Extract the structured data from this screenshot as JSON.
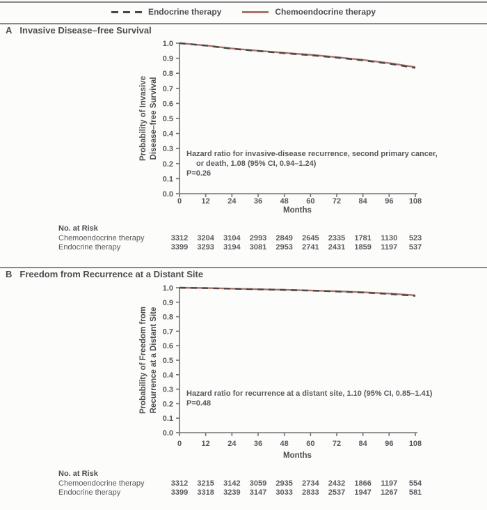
{
  "legend": {
    "items": [
      {
        "label": "Endocrine therapy",
        "line_style": "dashed",
        "color": "#48484a"
      },
      {
        "label": "Chemoendocrine therapy",
        "line_style": "solid",
        "color": "#ab7468"
      }
    ]
  },
  "panels": [
    {
      "letter": "A",
      "title": "Invasive Disease–free Survival",
      "ylabel_line1": "Probability of Invasive",
      "ylabel_line2": "Disease–free Survival",
      "xlabel": "Months",
      "annotation_lines": [
        "Hazard ratio for invasive-disease recurrence, second primary cancer,",
        "or death, 1.08 (95% CI, 0.94–1.24)",
        "P=0.26"
      ],
      "risk_table": {
        "header": "No. at Risk",
        "rows": [
          {
            "label": "Chemoendocrine therapy",
            "values": [
              3312,
              3204,
              3104,
              2993,
              2849,
              2645,
              2335,
              1781,
              1130,
              523
            ]
          },
          {
            "label": "Endocrine therapy",
            "values": [
              3399,
              3293,
              3194,
              3081,
              2953,
              2741,
              2431,
              1859,
              1197,
              537
            ]
          }
        ]
      }
    },
    {
      "letter": "B",
      "title": "Freedom from Recurrence at a Distant Site",
      "ylabel_line1": "Probability of Freedom from",
      "ylabel_line2": "Recurrence at a Distant Site",
      "xlabel": "Months",
      "annotation_lines": [
        "Hazard ratio for recurrence at a distant site, 1.10 (95% CI, 0.85–1.41)",
        "P=0.48"
      ],
      "risk_table": {
        "header": "No. at Risk",
        "rows": [
          {
            "label": "Chemoendocrine therapy",
            "values": [
              3312,
              3215,
              3142,
              3059,
              2935,
              2734,
              2432,
              1866,
              1197,
              554
            ]
          },
          {
            "label": "Endocrine therapy",
            "values": [
              3399,
              3318,
              3239,
              3147,
              3033,
              2833,
              2537,
              1947,
              1267,
              581
            ]
          }
        ]
      }
    }
  ],
  "chart_data": [
    {
      "type": "line",
      "title": "Invasive Disease–free Survival",
      "xlabel": "Months",
      "ylabel": "Probability of Invasive Disease–free Survival",
      "x": [
        0,
        12,
        24,
        36,
        48,
        60,
        72,
        84,
        96,
        108
      ],
      "xlim": [
        0,
        108
      ],
      "ylim": [
        0.0,
        1.0
      ],
      "yticks": [
        0.0,
        0.1,
        0.2,
        0.3,
        0.4,
        0.5,
        0.6,
        0.7,
        0.8,
        0.9,
        1.0
      ],
      "grid": false,
      "legend_position": "top-center",
      "series": [
        {
          "name": "Endocrine therapy",
          "style": "dashed",
          "color": "#48484a",
          "values": [
            1.0,
            0.984,
            0.963,
            0.948,
            0.933,
            0.92,
            0.904,
            0.886,
            0.864,
            0.836
          ]
        },
        {
          "name": "Chemoendocrine therapy",
          "style": "solid",
          "color": "#ab7468",
          "values": [
            1.0,
            0.985,
            0.965,
            0.95,
            0.936,
            0.923,
            0.907,
            0.889,
            0.868,
            0.841
          ]
        }
      ],
      "annotation": "Hazard ratio for invasive-disease recurrence, second primary cancer, or death, 1.08 (95% CI, 0.94–1.24); P=0.26"
    },
    {
      "type": "line",
      "title": "Freedom from Recurrence at a Distant Site",
      "xlabel": "Months",
      "ylabel": "Probability of Freedom from Recurrence at a Distant Site",
      "x": [
        0,
        12,
        24,
        36,
        48,
        60,
        72,
        84,
        96,
        108
      ],
      "xlim": [
        0,
        108
      ],
      "ylim": [
        0.0,
        1.0
      ],
      "yticks": [
        0.0,
        0.1,
        0.2,
        0.3,
        0.4,
        0.5,
        0.6,
        0.7,
        0.8,
        0.9,
        1.0
      ],
      "grid": false,
      "legend_position": "top-center",
      "series": [
        {
          "name": "Endocrine therapy",
          "style": "dashed",
          "color": "#48484a",
          "values": [
            1.0,
            0.997,
            0.993,
            0.989,
            0.985,
            0.98,
            0.974,
            0.967,
            0.957,
            0.944
          ]
        },
        {
          "name": "Chemoendocrine therapy",
          "style": "solid",
          "color": "#ab7468",
          "values": [
            1.0,
            0.998,
            0.994,
            0.99,
            0.986,
            0.981,
            0.976,
            0.969,
            0.96,
            0.948
          ]
        }
      ],
      "annotation": "Hazard ratio for recurrence at a distant site, 1.10 (95% CI, 0.85–1.41); P=0.48"
    }
  ]
}
